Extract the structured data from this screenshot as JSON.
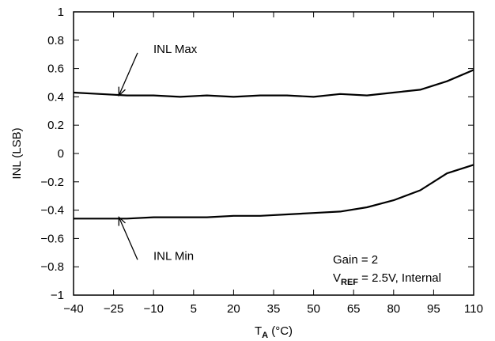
{
  "chart_data": {
    "type": "line",
    "xlabel": {
      "main": "T",
      "sub": "A",
      "unit": " (°C)"
    },
    "ylabel": "INL (LSB)",
    "xlim": [
      -40,
      110
    ],
    "ylim": [
      -1,
      1
    ],
    "x_ticks": [
      -40,
      -25,
      -10,
      5,
      20,
      35,
      50,
      65,
      80,
      95,
      110
    ],
    "x_tick_labels": [
      "−40",
      "−25",
      "−10",
      "5",
      "20",
      "35",
      "50",
      "65",
      "80",
      "95",
      "110"
    ],
    "y_ticks": [
      1,
      0.8,
      0.6,
      0.4,
      0.2,
      0,
      -0.2,
      -0.4,
      -0.6,
      -0.8,
      -1
    ],
    "y_tick_labels": [
      "1",
      "0.8",
      "0.6",
      "0.4",
      "0.2",
      "0",
      "−0.2",
      "−0.4",
      "−0.6",
      "−0.8",
      "−1"
    ],
    "grid": false,
    "series": [
      {
        "name": "INL Max",
        "x": [
          -40,
          -30,
          -20,
          -10,
          0,
          10,
          20,
          30,
          40,
          50,
          60,
          70,
          80,
          90,
          100,
          110
        ],
        "y": [
          0.43,
          0.42,
          0.41,
          0.41,
          0.4,
          0.41,
          0.4,
          0.41,
          0.41,
          0.4,
          0.42,
          0.41,
          0.43,
          0.45,
          0.51,
          0.59
        ]
      },
      {
        "name": "INL Min",
        "x": [
          -40,
          -30,
          -20,
          -10,
          0,
          10,
          20,
          30,
          40,
          50,
          60,
          70,
          80,
          90,
          100,
          110
        ],
        "y": [
          -0.46,
          -0.46,
          -0.46,
          -0.45,
          -0.45,
          -0.45,
          -0.44,
          -0.44,
          -0.43,
          -0.42,
          -0.41,
          -0.38,
          -0.33,
          -0.26,
          -0.14,
          -0.08
        ]
      }
    ],
    "annotations": [
      {
        "text": "INL Max",
        "arrow_from": [
          -16,
          0.71
        ],
        "arrow_to": [
          -23,
          0.41
        ]
      },
      {
        "text": "INL Min",
        "arrow_from": [
          -16,
          -0.75
        ],
        "arrow_to": [
          -23,
          -0.45
        ]
      }
    ],
    "conditions": {
      "line1": "Gain = 2",
      "line2_main": "V",
      "line2_sub": "REF",
      "line2_rest": " = 2.5V, Internal"
    },
    "line_color": "#000000"
  }
}
